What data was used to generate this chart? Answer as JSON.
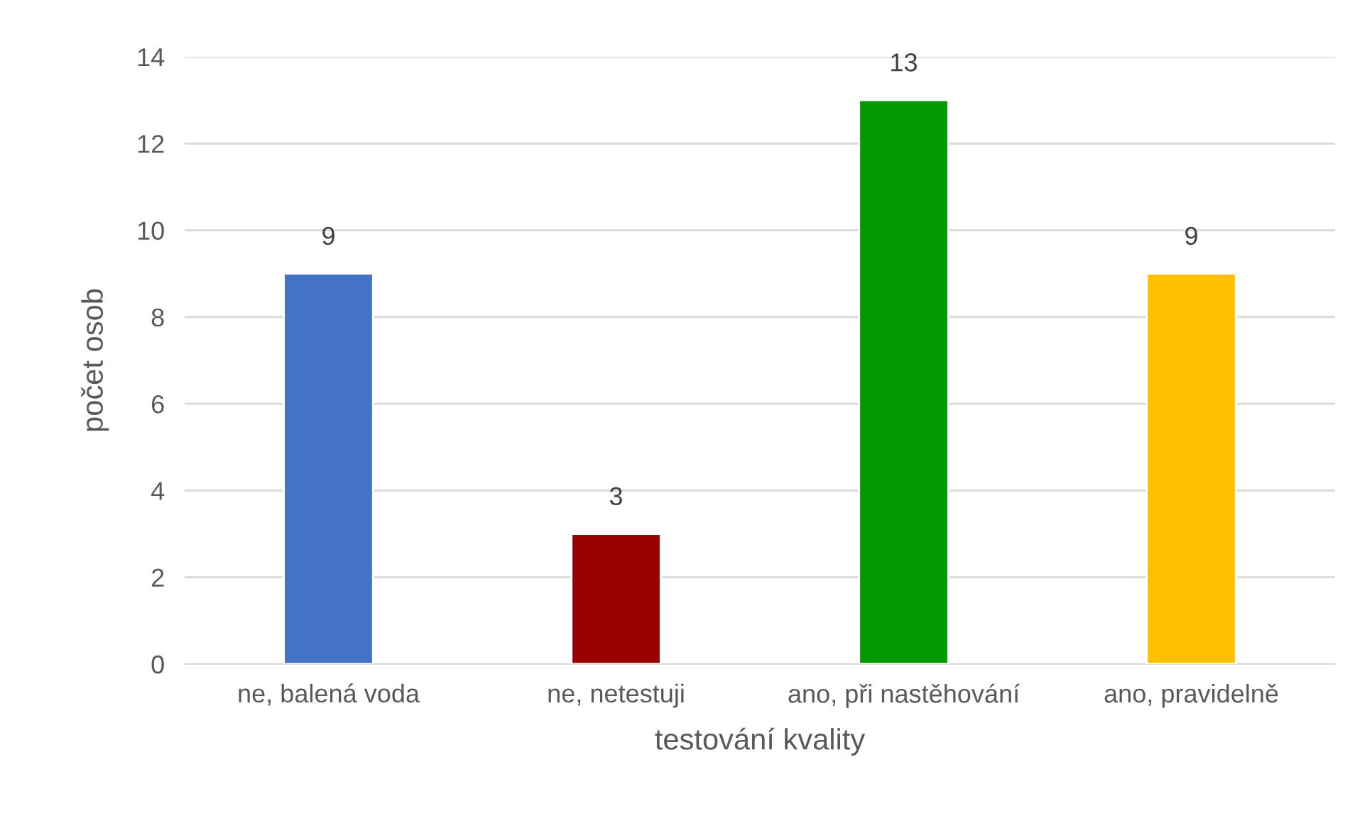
{
  "chart_data": {
    "type": "bar",
    "xlabel": "testování kvality",
    "ylabel": "počet osob",
    "categories": [
      "ne, balená voda",
      "ne, netestuji",
      "ano, při nastěhování",
      "ano, pravidelně"
    ],
    "values": [
      9,
      3,
      13,
      9
    ],
    "colors": [
      "#4472c4",
      "#990000",
      "#009900",
      "#ffc000"
    ],
    "ylim": [
      0,
      14
    ],
    "yticks": [
      0,
      2,
      4,
      6,
      8,
      10,
      12,
      14
    ],
    "grid": "y",
    "data_labels": true
  }
}
